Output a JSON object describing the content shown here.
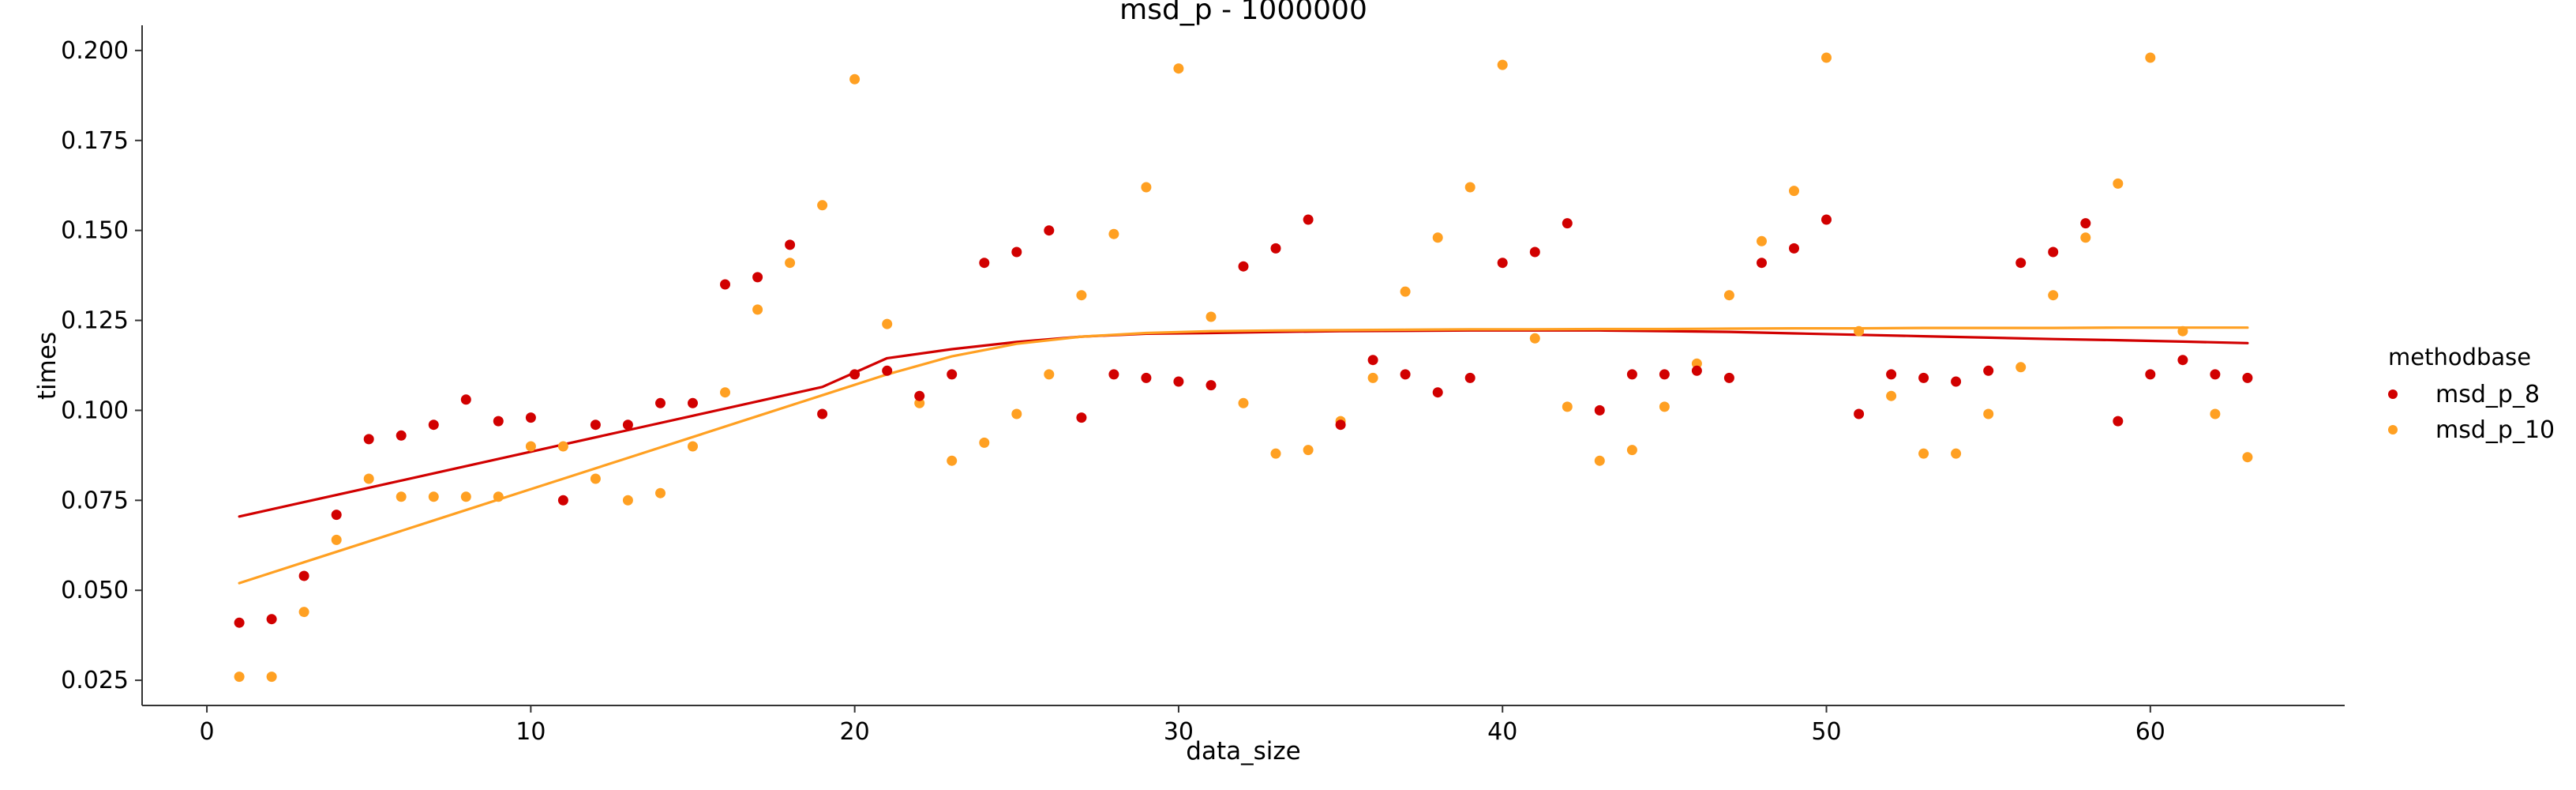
{
  "chart_data": {
    "type": "scatter",
    "title": "msd_p - 1000000",
    "xlabel": "data_size",
    "ylabel": "times",
    "xlim": [
      -2,
      66
    ],
    "ylim": [
      0.018,
      0.207
    ],
    "xticks": [
      0,
      10,
      20,
      30,
      40,
      50,
      60
    ],
    "xtick_labels": [
      "0",
      "10",
      "20",
      "30",
      "40",
      "50",
      "60"
    ],
    "yticks": [
      0.025,
      0.05,
      0.075,
      0.1,
      0.125,
      0.15,
      0.175,
      0.2
    ],
    "ytick_labels": [
      "0.025",
      "0.050",
      "0.075",
      "0.100",
      "0.125",
      "0.150",
      "0.175",
      "0.200"
    ],
    "grid": false,
    "legend": {
      "title": "methodbase",
      "placement": "right"
    },
    "series": [
      {
        "name": "msd_p_8",
        "color": "#d10000",
        "x": [
          1,
          2,
          3,
          4,
          5,
          6,
          7,
          8,
          9,
          10,
          11,
          12,
          13,
          14,
          15,
          16,
          17,
          18,
          19,
          20,
          21,
          22,
          23,
          24,
          25,
          26,
          27,
          28,
          29,
          30,
          31,
          32,
          33,
          34,
          35,
          36,
          37,
          38,
          39,
          40,
          41,
          42,
          43,
          44,
          45,
          46,
          47,
          48,
          49,
          50,
          51,
          52,
          53,
          54,
          55,
          56,
          57,
          58,
          59,
          60,
          61,
          62,
          63
        ],
        "y": [
          0.041,
          0.042,
          0.054,
          0.071,
          0.092,
          0.093,
          0.096,
          0.103,
          0.097,
          0.098,
          0.075,
          0.096,
          0.096,
          0.102,
          0.102,
          0.135,
          0.137,
          0.146,
          0.099,
          0.11,
          0.111,
          0.104,
          0.11,
          0.141,
          0.144,
          0.15,
          0.098,
          0.11,
          0.109,
          0.108,
          0.107,
          0.14,
          0.145,
          0.153,
          0.096,
          0.114,
          0.11,
          0.105,
          0.109,
          0.141,
          0.144,
          0.152,
          0.1,
          0.11,
          0.11,
          0.111,
          0.109,
          0.141,
          0.145,
          0.153,
          0.099,
          0.11,
          0.109,
          0.108,
          0.111,
          0.141,
          0.144,
          0.152,
          0.097,
          0.11,
          0.114,
          0.11,
          0.109
        ],
        "trend_x": [
          1,
          3,
          5,
          7,
          9,
          11,
          13,
          15,
          17,
          19,
          21,
          23,
          25,
          27,
          29,
          31,
          33,
          35,
          37,
          39,
          41,
          43,
          45,
          47,
          49,
          51,
          53,
          55,
          57,
          59,
          61,
          63
        ],
        "trend_y": [
          0.0705,
          0.0745,
          0.0785,
          0.0825,
          0.0865,
          0.0905,
          0.0945,
          0.0985,
          0.1025,
          0.1065,
          0.1145,
          0.117,
          0.119,
          0.1205,
          0.1213,
          0.1215,
          0.1218,
          0.122,
          0.1221,
          0.1222,
          0.1222,
          0.1222,
          0.122,
          0.1218,
          0.1214,
          0.121,
          0.1206,
          0.1202,
          0.1198,
          0.1195,
          0.1191,
          0.1187
        ]
      },
      {
        "name": "msd_p_10",
        "color": "#ffa022",
        "x": [
          1,
          2,
          3,
          4,
          5,
          6,
          7,
          8,
          9,
          10,
          11,
          12,
          13,
          14,
          15,
          16,
          17,
          18,
          19,
          20,
          21,
          22,
          23,
          24,
          25,
          26,
          27,
          28,
          29,
          30,
          31,
          32,
          33,
          34,
          35,
          36,
          37,
          38,
          39,
          40,
          41,
          42,
          43,
          44,
          45,
          46,
          47,
          48,
          49,
          50,
          51,
          52,
          53,
          54,
          55,
          56,
          57,
          58,
          59,
          60,
          61,
          62,
          63
        ],
        "y": [
          0.026,
          0.026,
          0.044,
          0.064,
          0.081,
          0.076,
          0.076,
          0.076,
          0.076,
          0.09,
          0.09,
          0.081,
          0.075,
          0.077,
          0.09,
          0.105,
          0.128,
          0.141,
          0.157,
          0.192,
          0.124,
          0.102,
          0.086,
          0.091,
          0.099,
          0.11,
          0.132,
          0.149,
          0.162,
          0.195,
          0.126,
          0.102,
          0.088,
          0.089,
          0.097,
          0.109,
          0.133,
          0.148,
          0.162,
          0.196,
          0.12,
          0.101,
          0.086,
          0.089,
          0.101,
          0.113,
          0.132,
          0.147,
          0.161,
          0.198,
          0.122,
          0.104,
          0.088,
          0.088,
          0.099,
          0.112,
          0.132,
          0.148,
          0.163,
          0.198,
          0.122,
          0.099,
          0.087
        ],
        "trend_x": [
          1,
          3,
          5,
          7,
          9,
          11,
          13,
          15,
          17,
          19,
          21,
          23,
          25,
          27,
          29,
          31,
          33,
          35,
          37,
          39,
          41,
          43,
          45,
          47,
          49,
          51,
          53,
          55,
          57,
          59,
          61,
          63
        ],
        "trend_y": [
          0.052,
          0.0578,
          0.0636,
          0.0694,
          0.0752,
          0.081,
          0.0868,
          0.0926,
          0.0984,
          0.1042,
          0.11,
          0.115,
          0.1185,
          0.1205,
          0.1215,
          0.122,
          0.1222,
          0.1223,
          0.1224,
          0.1225,
          0.1225,
          0.1226,
          0.1226,
          0.1227,
          0.1228,
          0.1228,
          0.1229,
          0.1229,
          0.1229,
          0.123,
          0.123,
          0.123
        ]
      }
    ]
  }
}
